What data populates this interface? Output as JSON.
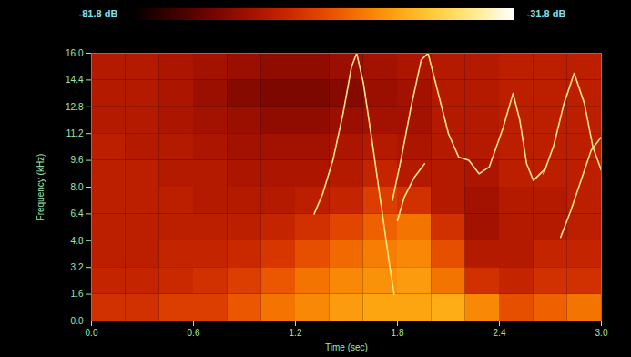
{
  "chart_data": {
    "type": "heatmap",
    "x_label": "Time (sec)",
    "y_label": "Frequency (kHz)",
    "xlim": [
      0,
      3.0
    ],
    "ylim": [
      0,
      16.0
    ],
    "xticks": [
      {
        "value": 0,
        "label": "0.0"
      },
      0.6,
      1.2,
      1.8,
      2.4,
      {
        "value": 3,
        "label": "3.0"
      }
    ],
    "yticks": [
      {
        "value": 0,
        "label": "0.0"
      },
      1.6,
      3.2,
      4.8,
      6.4,
      {
        "value": 8,
        "label": "8.0"
      },
      9.6,
      11.2,
      12.8,
      14.4,
      {
        "value": 16,
        "label": "16.0"
      }
    ],
    "colorbar": {
      "range": [
        -81.8,
        -31.8
      ],
      "ticks": [
        {
          "value": -81.8,
          "label": "-81.8 dB"
        },
        {
          "value": -31.8,
          "label": "-31.8 dB"
        }
      ]
    },
    "cells": {
      "x": [
        0,
        0.2,
        0.4,
        0.6,
        0.8,
        1.0,
        1.2,
        1.4,
        1.6,
        1.8,
        2.0,
        2.2,
        2.4,
        2.6,
        2.8,
        3.0
      ],
      "y": [
        0,
        1.6,
        3.2,
        4.8,
        6.4,
        8.0,
        9.6,
        11.2,
        12.8,
        14.4,
        16.0
      ],
      "values": [
        [
          -60,
          -60,
          -58,
          -58,
          -55,
          -52,
          -50,
          -48,
          -47,
          -47,
          -46,
          -50,
          -56,
          -54,
          -52
        ],
        [
          -62,
          -62,
          -61,
          -60,
          -58,
          -55,
          -52,
          -50,
          -49,
          -48,
          -52,
          -60,
          -62,
          -60,
          -60
        ],
        [
          -63,
          -63,
          -62,
          -62,
          -61,
          -59,
          -56,
          -53,
          -51,
          -50,
          -56,
          -64,
          -64,
          -62,
          -62
        ],
        [
          -63,
          -63,
          -63,
          -63,
          -63,
          -62,
          -60,
          -57,
          -54,
          -52,
          -60,
          -66,
          -64,
          -64,
          -63
        ],
        [
          -63,
          -63,
          -63,
          -64,
          -64,
          -64,
          -63,
          -62,
          -58,
          -60,
          -64,
          -66,
          -64,
          -64,
          -63
        ],
        [
          -63,
          -63,
          -64,
          -64,
          -65,
          -65,
          -65,
          -64,
          -62,
          -64,
          -64,
          -65,
          -63,
          -63,
          -63
        ],
        [
          -63,
          -64,
          -64,
          -65,
          -66,
          -66,
          -66,
          -65,
          -64,
          -65,
          -64,
          -64,
          -63,
          -63,
          -63
        ],
        [
          -64,
          -64,
          -65,
          -66,
          -67,
          -68,
          -68,
          -67,
          -66,
          -66,
          -64,
          -64,
          -63,
          -63,
          -63
        ],
        [
          -64,
          -64,
          -65,
          -67,
          -69,
          -70,
          -70,
          -69,
          -67,
          -66,
          -64,
          -64,
          -63,
          -63,
          -63
        ],
        [
          -64,
          -64,
          -65,
          -66,
          -67,
          -68,
          -68,
          -67,
          -66,
          -65,
          -64,
          -64,
          -63,
          -63,
          -63
        ]
      ]
    },
    "series": [
      {
        "color": "#ffe680",
        "x": [
          1.31,
          1.36,
          1.42,
          1.48,
          1.53,
          1.56,
          1.6,
          1.65,
          1.7,
          1.75,
          1.78
        ],
        "values": [
          6.4,
          7.6,
          9.6,
          12.4,
          15.2,
          16.0,
          14.2,
          10.8,
          7.2,
          3.6,
          1.6
        ]
      },
      {
        "color": "#ffe680",
        "x": [
          1.77,
          1.82,
          1.88,
          1.94,
          1.98,
          2.03,
          2.1,
          2.16,
          2.22,
          2.28,
          2.34,
          2.42,
          2.48,
          2.52,
          2.56,
          2.6,
          2.66
        ],
        "values": [
          7.2,
          9.6,
          12.8,
          15.6,
          16.0,
          14.0,
          11.2,
          9.8,
          9.6,
          8.8,
          9.2,
          11.5,
          13.6,
          12.0,
          9.4,
          8.4,
          9.0
        ]
      },
      {
        "color": "#ffe680",
        "x": [
          1.8,
          1.84,
          1.9,
          1.96
        ],
        "values": [
          6.0,
          7.4,
          8.6,
          9.4
        ]
      },
      {
        "color": "#ffe680",
        "x": [
          2.66,
          2.72,
          2.78,
          2.84,
          2.9,
          2.95,
          3.0
        ],
        "values": [
          8.8,
          10.5,
          13.0,
          14.8,
          13.0,
          10.4,
          9.0
        ]
      },
      {
        "color": "#ffe680",
        "x": [
          2.76,
          2.82,
          2.88,
          2.94,
          3.0
        ],
        "values": [
          5.0,
          6.6,
          8.4,
          10.2,
          11.0
        ]
      }
    ]
  }
}
